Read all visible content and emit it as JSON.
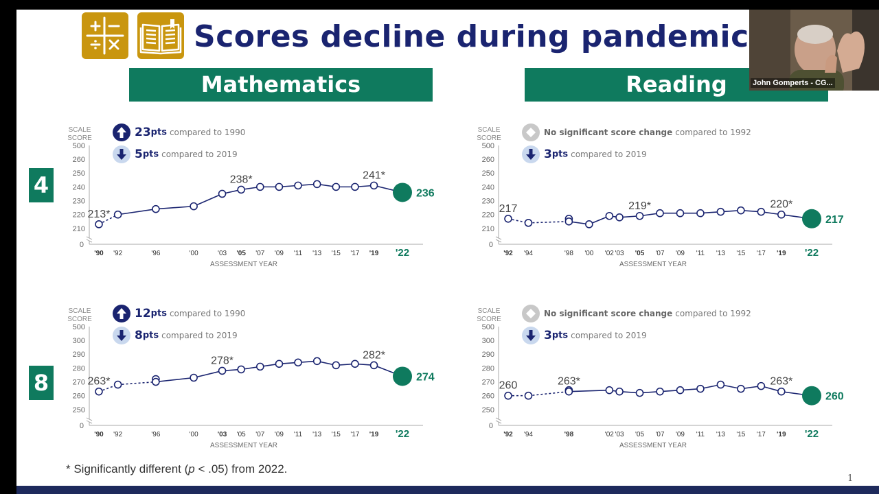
{
  "slide": {
    "title": "Scores decline during pandemic",
    "footnote_star": "* Significantly different (",
    "footnote_p": "p",
    "footnote_rest": " < .05) from 2022.",
    "page_number": "1",
    "icons": [
      "calculator-icon",
      "book-icon"
    ],
    "colors": {
      "navy": "#1a2470",
      "green": "#0f7a5e",
      "gold": "#c9960f",
      "badge_light": "#c9d8ee",
      "axis": "#aaaaaa"
    }
  },
  "subjects": {
    "math": "Mathematics",
    "reading": "Reading"
  },
  "grades": {
    "g4": "4",
    "g8": "8"
  },
  "video": {
    "participant": "John Gomperts - CG..."
  },
  "chart_data": [
    {
      "id": "math4",
      "type": "line",
      "subject": "Mathematics",
      "grade": "4",
      "yaxis_title": [
        "SCALE",
        "SCORE"
      ],
      "xlabel": "ASSESSMENT YEAR",
      "y_ticks": [
        210,
        220,
        230,
        240,
        250,
        260
      ],
      "y_top_label": 500,
      "y_zero_label": 0,
      "ylim": [
        205,
        262
      ],
      "x_tick_labels": [
        {
          "year": 1990,
          "label": "'90",
          "bold": true
        },
        {
          "year": 1992,
          "label": "'92",
          "bold": false
        },
        {
          "year": 1996,
          "label": "'96",
          "bold": false
        },
        {
          "year": 2000,
          "label": "'00",
          "bold": false
        },
        {
          "year": 2003,
          "label": "'03",
          "bold": false
        },
        {
          "year": 2005,
          "label": "'05",
          "bold": true
        },
        {
          "year": 2007,
          "label": "'07",
          "bold": false
        },
        {
          "year": 2009,
          "label": "'09",
          "bold": false
        },
        {
          "year": 2011,
          "label": "'11",
          "bold": false
        },
        {
          "year": 2013,
          "label": "'13",
          "bold": false
        },
        {
          "year": 2015,
          "label": "'15",
          "bold": false
        },
        {
          "year": 2017,
          "label": "'17",
          "bold": false
        },
        {
          "year": 2019,
          "label": "'19",
          "bold": true
        },
        {
          "year": 2022,
          "label": "'22",
          "bold": true,
          "final": true
        }
      ],
      "series": [
        {
          "points": [
            [
              1990,
              213
            ],
            [
              1992,
              220
            ],
            [
              1996,
              224
            ],
            [
              2000,
              226
            ],
            [
              2003,
              235
            ],
            [
              2005,
              238
            ],
            [
              2007,
              240
            ],
            [
              2009,
              240
            ],
            [
              2011,
              241
            ],
            [
              2013,
              242
            ],
            [
              2015,
              240
            ],
            [
              2017,
              240
            ],
            [
              2019,
              241
            ],
            [
              2022,
              236
            ]
          ]
        }
      ],
      "dashed_until_year": 1992,
      "second_points": [],
      "labels": [
        {
          "year": 1990,
          "text": "213*"
        },
        {
          "year": 2005,
          "text": "238*"
        },
        {
          "year": 2019,
          "text": "241*"
        }
      ],
      "final_label": "236",
      "stats": [
        {
          "type": "up",
          "value": "23",
          "unit": "pts",
          "text": "compared to 1990"
        },
        {
          "type": "down",
          "value": "5",
          "unit": "pts",
          "text": "compared to 2019"
        }
      ]
    },
    {
      "id": "read4",
      "type": "line",
      "subject": "Reading",
      "grade": "4",
      "yaxis_title": [
        "SCALE",
        "SCORE"
      ],
      "xlabel": "ASSESSMENT YEAR",
      "y_ticks": [
        210,
        220,
        230,
        240,
        250,
        260
      ],
      "y_top_label": 500,
      "y_zero_label": 0,
      "ylim": [
        205,
        262
      ],
      "x_tick_labels": [
        {
          "year": 1992,
          "label": "'92",
          "bold": true
        },
        {
          "year": 1994,
          "label": "'94",
          "bold": false
        },
        {
          "year": 1998,
          "label": "'98",
          "bold": false
        },
        {
          "year": 2000,
          "label": "'00",
          "bold": false
        },
        {
          "year": 2002,
          "label": "'02",
          "bold": false
        },
        {
          "year": 2003,
          "label": "'03",
          "bold": false
        },
        {
          "year": 2005,
          "label": "'05",
          "bold": true
        },
        {
          "year": 2007,
          "label": "'07",
          "bold": false
        },
        {
          "year": 2009,
          "label": "'09",
          "bold": false
        },
        {
          "year": 2011,
          "label": "'11",
          "bold": false
        },
        {
          "year": 2013,
          "label": "'13",
          "bold": false
        },
        {
          "year": 2015,
          "label": "'15",
          "bold": false
        },
        {
          "year": 2017,
          "label": "'17",
          "bold": false
        },
        {
          "year": 2019,
          "label": "'19",
          "bold": true
        },
        {
          "year": 2022,
          "label": "'22",
          "bold": true,
          "final": true
        }
      ],
      "series": [
        {
          "points": [
            [
              1992,
              217
            ],
            [
              1994,
              214
            ],
            [
              1998,
              215
            ],
            [
              2000,
              213
            ],
            [
              2002,
              219
            ],
            [
              2003,
              218
            ],
            [
              2005,
              219
            ],
            [
              2007,
              221
            ],
            [
              2009,
              221
            ],
            [
              2011,
              221
            ],
            [
              2013,
              222
            ],
            [
              2015,
              223
            ],
            [
              2017,
              222
            ],
            [
              2019,
              220
            ],
            [
              2022,
              217
            ]
          ]
        }
      ],
      "dashed_until_year": 1998,
      "second_points": [
        [
          1998,
          217
        ]
      ],
      "labels": [
        {
          "year": 1992,
          "text": "217"
        },
        {
          "year": 2005,
          "text": "219*"
        },
        {
          "year": 2019,
          "text": "220*"
        }
      ],
      "final_label": "217",
      "stats": [
        {
          "type": "none",
          "value": "",
          "unit": "",
          "bold_text": "No significant score change",
          "text": "compared to 1992"
        },
        {
          "type": "down",
          "value": "3",
          "unit": "pts",
          "text": "compared to 2019"
        }
      ]
    },
    {
      "id": "math8",
      "type": "line",
      "subject": "Mathematics",
      "grade": "8",
      "yaxis_title": [
        "SCALE",
        "SCORE"
      ],
      "xlabel": "ASSESSMENT YEAR",
      "y_ticks": [
        250,
        260,
        270,
        280,
        290,
        300
      ],
      "y_top_label": 500,
      "y_zero_label": 0,
      "ylim": [
        245,
        302
      ],
      "x_tick_labels": [
        {
          "year": 1990,
          "label": "'90",
          "bold": true
        },
        {
          "year": 1992,
          "label": "'92",
          "bold": false
        },
        {
          "year": 1996,
          "label": "'96",
          "bold": false
        },
        {
          "year": 2000,
          "label": "'00",
          "bold": false
        },
        {
          "year": 2003,
          "label": "'03",
          "bold": true
        },
        {
          "year": 2005,
          "label": "'05",
          "bold": false
        },
        {
          "year": 2007,
          "label": "'07",
          "bold": false
        },
        {
          "year": 2009,
          "label": "'09",
          "bold": false
        },
        {
          "year": 2011,
          "label": "'11",
          "bold": false
        },
        {
          "year": 2013,
          "label": "'13",
          "bold": false
        },
        {
          "year": 2015,
          "label": "'15",
          "bold": false
        },
        {
          "year": 2017,
          "label": "'17",
          "bold": false
        },
        {
          "year": 2019,
          "label": "'19",
          "bold": true
        },
        {
          "year": 2022,
          "label": "'22",
          "bold": true,
          "final": true
        }
      ],
      "series": [
        {
          "points": [
            [
              1990,
              263
            ],
            [
              1992,
              268
            ],
            [
              1996,
              270
            ],
            [
              2000,
              273
            ],
            [
              2003,
              278
            ],
            [
              2005,
              279
            ],
            [
              2007,
              281
            ],
            [
              2009,
              283
            ],
            [
              2011,
              284
            ],
            [
              2013,
              285
            ],
            [
              2015,
              282
            ],
            [
              2017,
              283
            ],
            [
              2019,
              282
            ],
            [
              2022,
              274
            ]
          ]
        }
      ],
      "dashed_until_year": 1996,
      "second_points": [
        [
          1996,
          272
        ]
      ],
      "labels": [
        {
          "year": 1990,
          "text": "263*"
        },
        {
          "year": 2003,
          "text": "278*"
        },
        {
          "year": 2019,
          "text": "282*"
        }
      ],
      "final_label": "274",
      "stats": [
        {
          "type": "up",
          "value": "12",
          "unit": "pts",
          "text": "compared to 1990"
        },
        {
          "type": "down",
          "value": "8",
          "unit": "pts",
          "text": "compared to 2019"
        }
      ]
    },
    {
      "id": "read8",
      "type": "line",
      "subject": "Reading",
      "grade": "8",
      "yaxis_title": [
        "SCALE",
        "SCORE"
      ],
      "xlabel": "ASSESSMENT YEAR",
      "y_ticks": [
        250,
        260,
        270,
        280,
        290,
        300
      ],
      "y_top_label": 500,
      "y_zero_label": 0,
      "ylim": [
        245,
        302
      ],
      "x_tick_labels": [
        {
          "year": 1992,
          "label": "'92",
          "bold": true
        },
        {
          "year": 1994,
          "label": "'94",
          "bold": false
        },
        {
          "year": 1998,
          "label": "'98",
          "bold": true
        },
        {
          "year": 2002,
          "label": "'02",
          "bold": false
        },
        {
          "year": 2003,
          "label": "'03",
          "bold": false
        },
        {
          "year": 2005,
          "label": "'05",
          "bold": false
        },
        {
          "year": 2007,
          "label": "'07",
          "bold": false
        },
        {
          "year": 2009,
          "label": "'09",
          "bold": false
        },
        {
          "year": 2011,
          "label": "'11",
          "bold": false
        },
        {
          "year": 2013,
          "label": "'13",
          "bold": false
        },
        {
          "year": 2015,
          "label": "'15",
          "bold": false
        },
        {
          "year": 2017,
          "label": "'17",
          "bold": false
        },
        {
          "year": 2019,
          "label": "'19",
          "bold": true
        },
        {
          "year": 2022,
          "label": "'22",
          "bold": true,
          "final": true
        }
      ],
      "series": [
        {
          "points": [
            [
              1992,
              260
            ],
            [
              1994,
              260
            ],
            [
              1998,
              263
            ],
            [
              2002,
              264
            ],
            [
              2003,
              263
            ],
            [
              2005,
              262
            ],
            [
              2007,
              263
            ],
            [
              2009,
              264
            ],
            [
              2011,
              265
            ],
            [
              2013,
              268
            ],
            [
              2015,
              265
            ],
            [
              2017,
              267
            ],
            [
              2019,
              263
            ],
            [
              2022,
              260
            ]
          ]
        }
      ],
      "dashed_until_year": 1998,
      "second_points": [
        [
          1998,
          264
        ]
      ],
      "labels": [
        {
          "year": 1992,
          "text": "260"
        },
        {
          "year": 1998,
          "text": "263*"
        },
        {
          "year": 2019,
          "text": "263*"
        }
      ],
      "final_label": "260",
      "stats": [
        {
          "type": "none",
          "value": "",
          "unit": "",
          "bold_text": "No significant score change",
          "text": "compared to 1992"
        },
        {
          "type": "down",
          "value": "3",
          "unit": "pts",
          "text": "compared to 2019"
        }
      ]
    }
  ]
}
